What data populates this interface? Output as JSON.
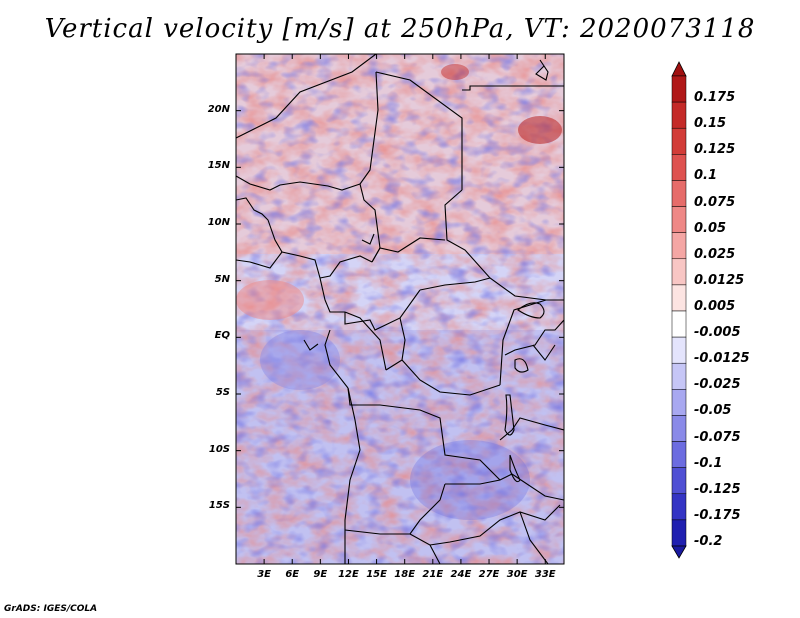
{
  "title": "Vertical velocity [m/s] at 250hPa, VT: 2020073118",
  "credit": "GrADS: IGES/COLA",
  "map": {
    "lat_range": [
      -20,
      25
    ],
    "lon_range": [
      0,
      35
    ],
    "lat_ticks": [
      {
        "value": 20,
        "label": "20N"
      },
      {
        "value": 15,
        "label": "15N"
      },
      {
        "value": 10,
        "label": "10N"
      },
      {
        "value": 5,
        "label": "5N"
      },
      {
        "value": 0,
        "label": "EQ"
      },
      {
        "value": -5,
        "label": "5S"
      },
      {
        "value": -10,
        "label": "10S"
      },
      {
        "value": -15,
        "label": "15S"
      }
    ],
    "lon_ticks": [
      {
        "value": 3,
        "label": "3E"
      },
      {
        "value": 6,
        "label": "6E"
      },
      {
        "value": 9,
        "label": "9E"
      },
      {
        "value": 12,
        "label": "12E"
      },
      {
        "value": 15,
        "label": "15E"
      },
      {
        "value": 18,
        "label": "18E"
      },
      {
        "value": 21,
        "label": "21E"
      },
      {
        "value": 24,
        "label": "24E"
      },
      {
        "value": 27,
        "label": "27E"
      },
      {
        "value": 30,
        "label": "30E"
      },
      {
        "value": 33,
        "label": "33E"
      }
    ]
  },
  "colorbar": {
    "levels": [
      {
        "label": "0.175",
        "color": "#b01818"
      },
      {
        "label": "0.15",
        "color": "#c42a28"
      },
      {
        "label": "0.125",
        "color": "#d23c38"
      },
      {
        "label": "0.1",
        "color": "#de5250"
      },
      {
        "label": "0.075",
        "color": "#e66c6a"
      },
      {
        "label": "0.05",
        "color": "#ee8886"
      },
      {
        "label": "0.025",
        "color": "#f4a6a4"
      },
      {
        "label": "0.0125",
        "color": "#f8c6c4"
      },
      {
        "label": "0.005",
        "color": "#fce4e2"
      },
      {
        "label": "-0.005",
        "color": "#ffffff"
      },
      {
        "label": "-0.0125",
        "color": "#e4e4fc"
      },
      {
        "label": "-0.025",
        "color": "#c6c6f6"
      },
      {
        "label": "-0.05",
        "color": "#a8a8f0"
      },
      {
        "label": "-0.075",
        "color": "#8a8ae8"
      },
      {
        "label": "-0.1",
        "color": "#6c6ce0"
      },
      {
        "label": "-0.125",
        "color": "#5050d4"
      },
      {
        "label": "-0.175",
        "color": "#3434c4"
      },
      {
        "label": "-0.2",
        "color": "#2020b0"
      }
    ],
    "top_color": "#a01010",
    "bottom_color": "#1a1aa0"
  }
}
